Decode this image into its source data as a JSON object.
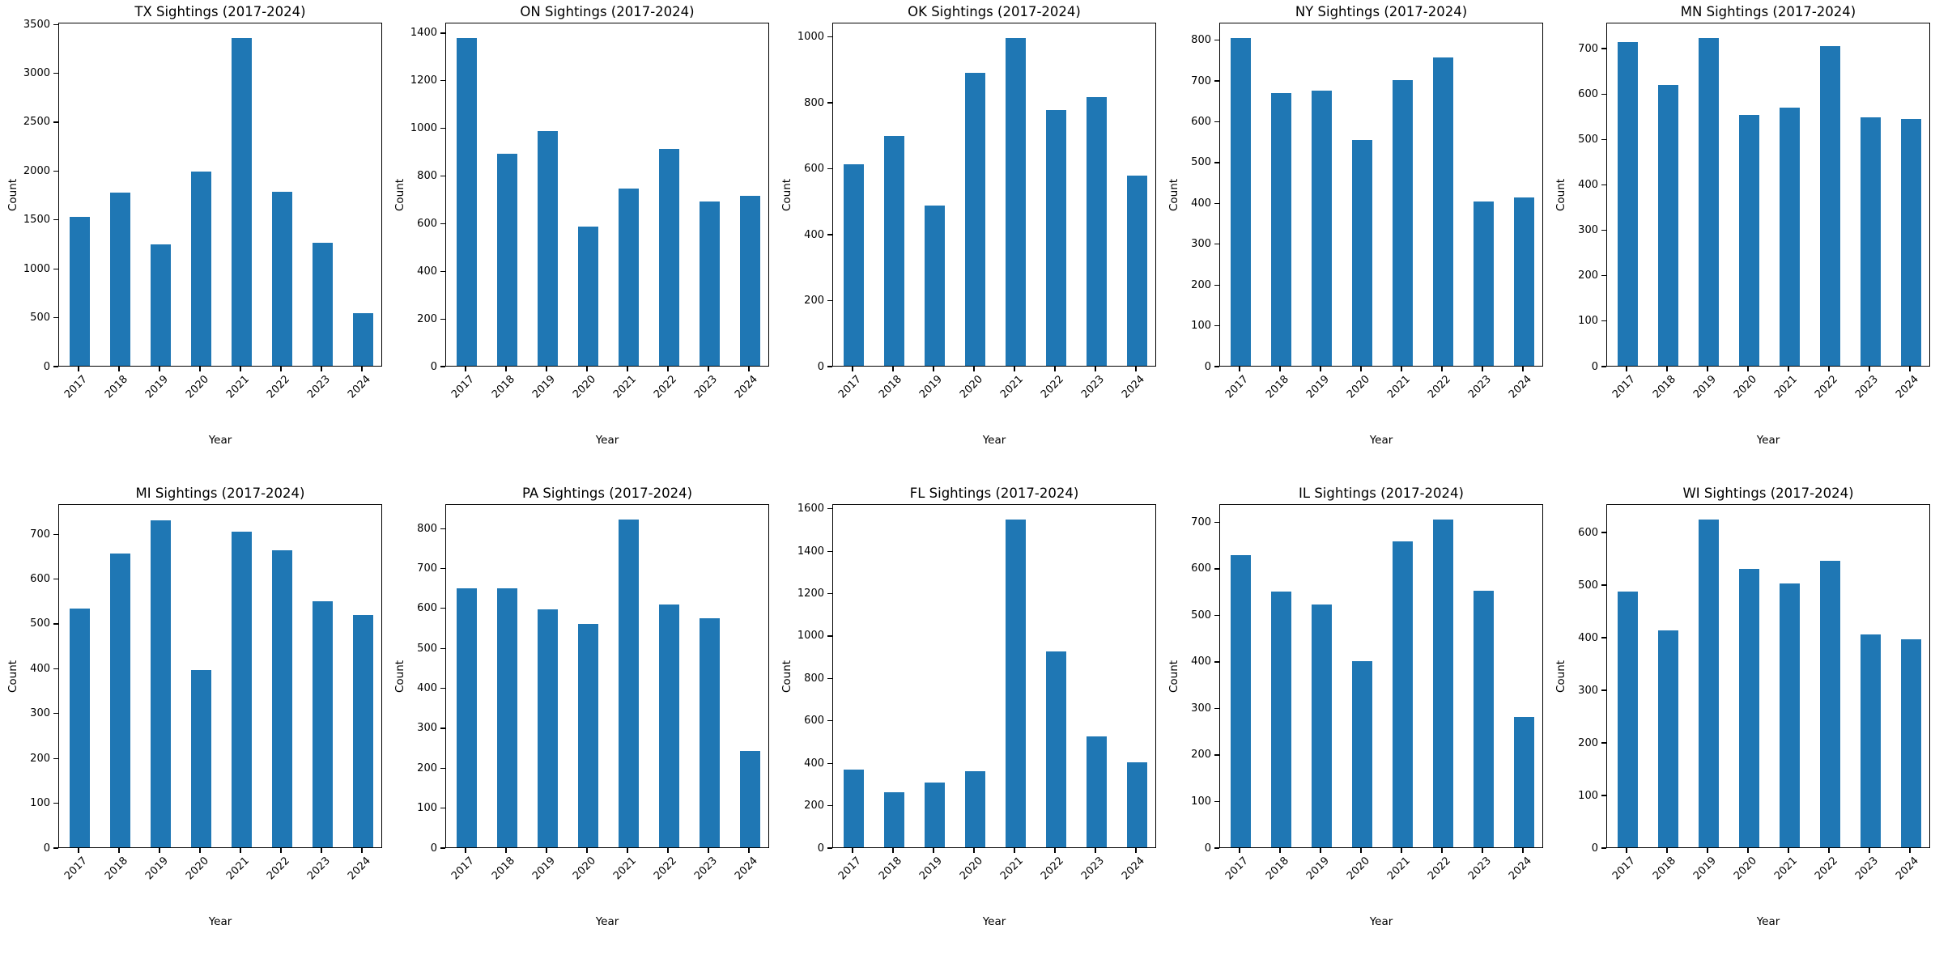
{
  "figure": {
    "background": "#ffffff",
    "rows": 2,
    "cols": 5,
    "bar_color": "#1f77b4",
    "spine_color": "#000000",
    "text_color": "#000000"
  },
  "chart_data": [
    {
      "id": "TX",
      "type": "bar",
      "title": "TX Sightings (2017-2024)",
      "xlabel": "Year",
      "ylabel": "Count",
      "categories": [
        "2017",
        "2018",
        "2019",
        "2020",
        "2021",
        "2022",
        "2023",
        "2024"
      ],
      "values": [
        1520,
        1770,
        1240,
        1990,
        3350,
        1780,
        1260,
        540
      ],
      "ylim": [
        0,
        3518
      ],
      "ytick_step": 500,
      "yticks": [
        0,
        500,
        1000,
        1500,
        2000,
        2500,
        3000,
        3500
      ],
      "bar_color": "#1f77b4",
      "grid": false,
      "legend": null
    },
    {
      "id": "ON",
      "type": "bar",
      "title": "ON Sightings (2017-2024)",
      "xlabel": "Year",
      "ylabel": "Count",
      "categories": [
        "2017",
        "2018",
        "2019",
        "2020",
        "2021",
        "2022",
        "2023",
        "2024"
      ],
      "values": [
        1375,
        890,
        985,
        583,
        745,
        912,
        690,
        715
      ],
      "ylim": [
        0,
        1444
      ],
      "ytick_step": 200,
      "yticks": [
        0,
        200,
        400,
        600,
        800,
        1000,
        1200,
        1400
      ],
      "bar_color": "#1f77b4",
      "grid": false,
      "legend": null
    },
    {
      "id": "OK",
      "type": "bar",
      "title": "OK Sightings (2017-2024)",
      "xlabel": "Year",
      "ylabel": "Count",
      "categories": [
        "2017",
        "2018",
        "2019",
        "2020",
        "2021",
        "2022",
        "2023",
        "2024"
      ],
      "values": [
        610,
        697,
        485,
        888,
        993,
        775,
        815,
        577
      ],
      "ylim": [
        0,
        1043
      ],
      "ytick_step": 200,
      "yticks": [
        0,
        200,
        400,
        600,
        800,
        1000
      ],
      "bar_color": "#1f77b4",
      "grid": false,
      "legend": null
    },
    {
      "id": "NY",
      "type": "bar",
      "title": "NY Sightings (2017-2024)",
      "xlabel": "Year",
      "ylabel": "Count",
      "categories": [
        "2017",
        "2018",
        "2019",
        "2020",
        "2021",
        "2022",
        "2023",
        "2024"
      ],
      "values": [
        803,
        668,
        675,
        553,
        700,
        755,
        402,
        412
      ],
      "ylim": [
        0,
        843
      ],
      "ytick_step": 100,
      "yticks": [
        0,
        100,
        200,
        300,
        400,
        500,
        600,
        700,
        800
      ],
      "bar_color": "#1f77b4",
      "grid": false,
      "legend": null
    },
    {
      "id": "MN",
      "type": "bar",
      "title": "MN Sightings (2017-2024)",
      "xlabel": "Year",
      "ylabel": "Count",
      "categories": [
        "2017",
        "2018",
        "2019",
        "2020",
        "2021",
        "2022",
        "2023",
        "2024"
      ],
      "values": [
        713,
        618,
        721,
        552,
        568,
        703,
        547,
        544
      ],
      "ylim": [
        0,
        757
      ],
      "ytick_step": 100,
      "yticks": [
        0,
        100,
        200,
        300,
        400,
        500,
        600,
        700
      ],
      "bar_color": "#1f77b4",
      "grid": false,
      "legend": null
    },
    {
      "id": "MI",
      "type": "bar",
      "title": "MI Sightings (2017-2024)",
      "xlabel": "Year",
      "ylabel": "Count",
      "categories": [
        "2017",
        "2018",
        "2019",
        "2020",
        "2021",
        "2022",
        "2023",
        "2024"
      ],
      "values": [
        532,
        655,
        730,
        395,
        703,
        663,
        548,
        518
      ],
      "ylim": [
        0,
        767
      ],
      "ytick_step": 100,
      "yticks": [
        0,
        100,
        200,
        300,
        400,
        500,
        600,
        700
      ],
      "bar_color": "#1f77b4",
      "grid": false,
      "legend": null
    },
    {
      "id": "PA",
      "type": "bar",
      "title": "PA Sightings (2017-2024)",
      "xlabel": "Year",
      "ylabel": "Count",
      "categories": [
        "2017",
        "2018",
        "2019",
        "2020",
        "2021",
        "2022",
        "2023",
        "2024"
      ],
      "values": [
        648,
        648,
        595,
        560,
        820,
        608,
        573,
        242
      ],
      "ylim": [
        0,
        861
      ],
      "ytick_step": 100,
      "yticks": [
        0,
        100,
        200,
        300,
        400,
        500,
        600,
        700,
        800
      ],
      "bar_color": "#1f77b4",
      "grid": false,
      "legend": null
    },
    {
      "id": "FL",
      "type": "bar",
      "title": "FL Sightings (2017-2024)",
      "xlabel": "Year",
      "ylabel": "Count",
      "categories": [
        "2017",
        "2018",
        "2019",
        "2020",
        "2021",
        "2022",
        "2023",
        "2024"
      ],
      "values": [
        365,
        260,
        305,
        360,
        1545,
        922,
        522,
        400
      ],
      "ylim": [
        0,
        1622
      ],
      "ytick_step": 200,
      "yticks": [
        0,
        200,
        400,
        600,
        800,
        1000,
        1200,
        1400,
        1600
      ],
      "bar_color": "#1f77b4",
      "grid": false,
      "legend": null
    },
    {
      "id": "IL",
      "type": "bar",
      "title": "IL Sightings (2017-2024)",
      "xlabel": "Year",
      "ylabel": "Count",
      "categories": [
        "2017",
        "2018",
        "2019",
        "2020",
        "2021",
        "2022",
        "2023",
        "2024"
      ],
      "values": [
        628,
        550,
        522,
        400,
        657,
        704,
        552,
        280
      ],
      "ylim": [
        0,
        739
      ],
      "ytick_step": 100,
      "yticks": [
        0,
        100,
        200,
        300,
        400,
        500,
        600,
        700
      ],
      "bar_color": "#1f77b4",
      "grid": false,
      "legend": null
    },
    {
      "id": "WI",
      "type": "bar",
      "title": "WI Sightings (2017-2024)",
      "xlabel": "Year",
      "ylabel": "Count",
      "categories": [
        "2017",
        "2018",
        "2019",
        "2020",
        "2021",
        "2022",
        "2023",
        "2024"
      ],
      "values": [
        486,
        412,
        623,
        529,
        501,
        545,
        404,
        396
      ],
      "ylim": [
        0,
        654
      ],
      "ytick_step": 100,
      "yticks": [
        0,
        100,
        200,
        300,
        400,
        500,
        600
      ],
      "bar_color": "#1f77b4",
      "grid": false,
      "legend": null
    }
  ]
}
